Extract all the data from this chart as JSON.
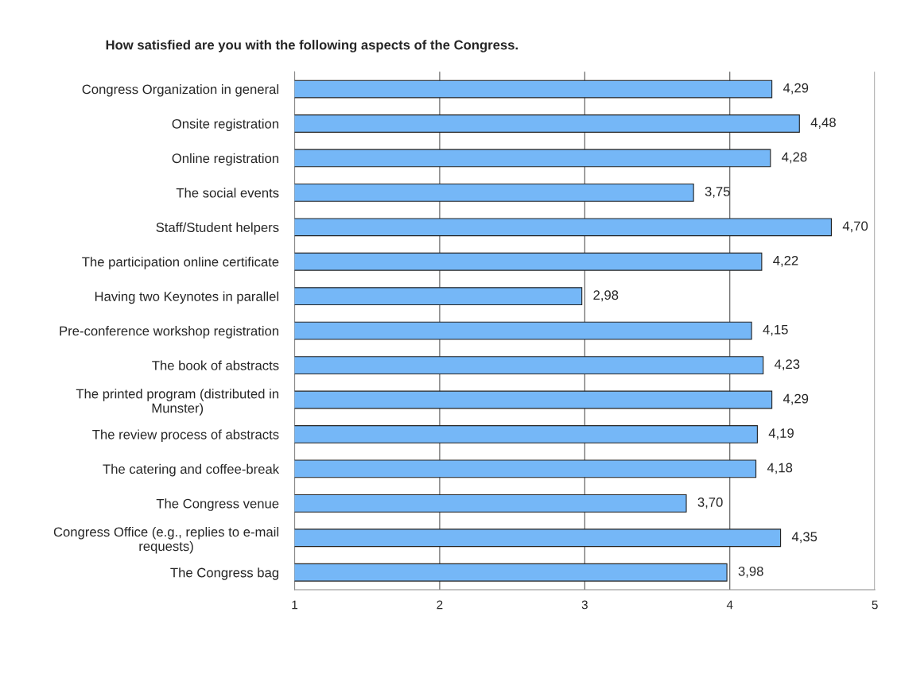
{
  "chart_data": {
    "type": "bar",
    "orientation": "horizontal",
    "title": "How satisfied are you with the following aspects of the Congress.",
    "categories": [
      "Congress Organization in general",
      "Onsite registration",
      "Online registration",
      "The social events",
      "Staff/Student helpers",
      "The participation online certificate",
      "Having two Keynotes in parallel",
      "Pre-conference workshop registration",
      "The book of abstracts",
      "The printed program (distributed in\nMunster)",
      "The review process of abstracts",
      "The catering and coffee-break",
      "The Congress venue",
      "Congress Office (e.g., replies to e-mail\nrequests)",
      "The Congress bag"
    ],
    "values": [
      4.29,
      4.48,
      4.28,
      3.75,
      4.7,
      4.22,
      2.98,
      4.15,
      4.23,
      4.29,
      4.19,
      4.18,
      3.7,
      4.35,
      3.98
    ],
    "value_labels": [
      "4,29",
      "4,48",
      "4,28",
      "3,75",
      "4,70",
      "4,22",
      "2,98",
      "4,15",
      "4,23",
      "4,29",
      "4,19",
      "4,18",
      "3,70",
      "4,35",
      "3,98"
    ],
    "color": "#75b7f7",
    "xlim": [
      1,
      5
    ],
    "xticks": [
      1,
      2,
      3,
      4,
      5
    ],
    "grid": "x",
    "legend": false
  }
}
